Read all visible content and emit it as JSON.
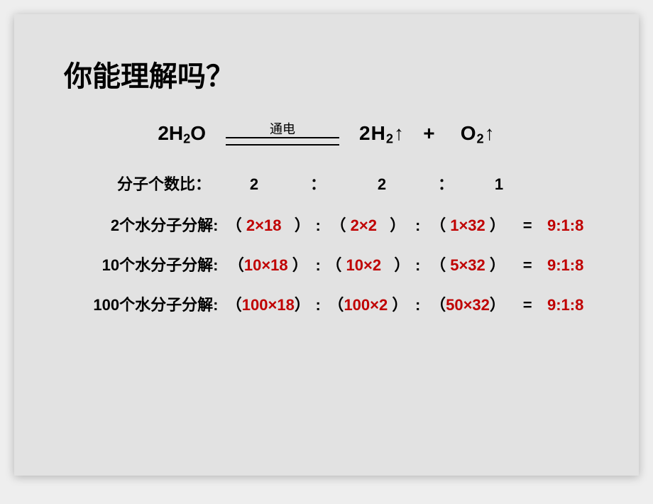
{
  "title": "你能理解吗？",
  "equation": {
    "lhs": "2H₂O",
    "condition": "通电",
    "rhs_h2": "2H₂↑",
    "plus": "+",
    "rhs_o2": "O₂↑"
  },
  "count": {
    "label": "分子个数比：",
    "a": "2",
    "sep1": "：",
    "b": "2",
    "sep2": "：",
    "c": "1"
  },
  "rows": [
    {
      "label": "2个水分子分解:",
      "a": "2×18",
      "b": "2×2",
      "c": "1×32",
      "result": "9:1:8"
    },
    {
      "label": "10个水分子分解:",
      "a": "10×18",
      "b": "10×2",
      "c": "5×32",
      "result": "9:1:8"
    },
    {
      "label": "100个水分子分解:",
      "a": "100×18",
      "b": "100×2",
      "c": "50×32",
      "result": "9:1:8"
    }
  ],
  "paren_open": "（",
  "paren_close": "）",
  "colon": ":",
  "equals": "=",
  "colors": {
    "background": "#e2e2e2",
    "text": "#000000",
    "accent": "#c00000"
  }
}
